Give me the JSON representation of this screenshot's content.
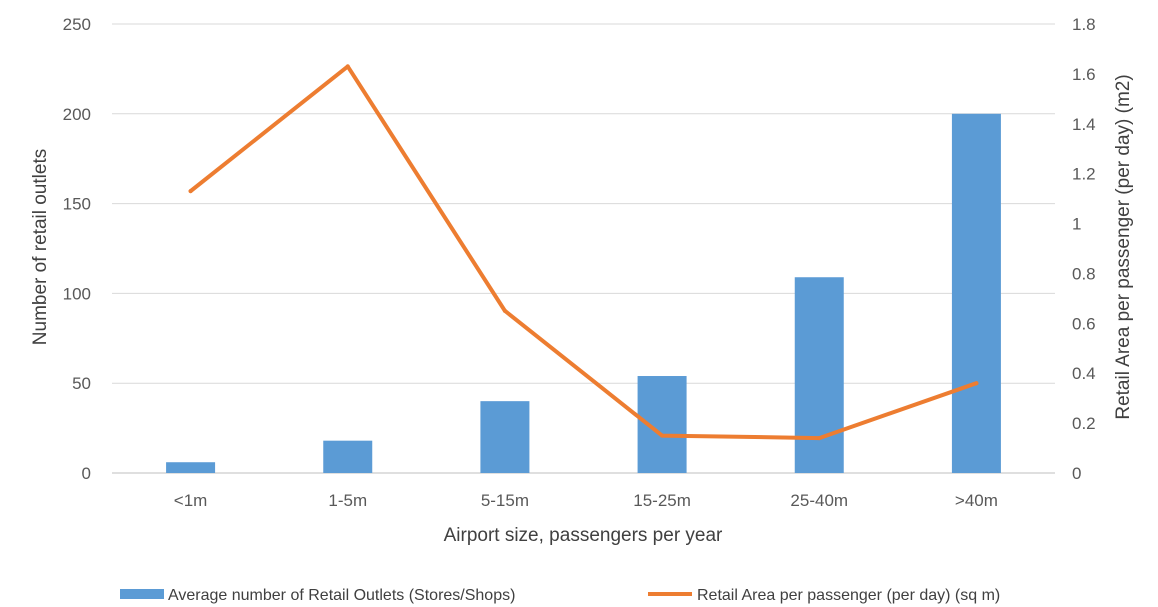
{
  "chart_data": {
    "type": "bar",
    "categories": [
      "<1m",
      "1-5m",
      "5-15m",
      "15-25m",
      "25-40m",
      ">40m"
    ],
    "series": [
      {
        "name": "Average number of Retail Outlets (Stores/Shops)",
        "type": "bar",
        "axis": "left",
        "color": "#5B9BD5",
        "values": [
          6,
          18,
          40,
          54,
          109,
          200
        ]
      },
      {
        "name": "Retail Area per passenger (per day) (sq m)",
        "type": "line",
        "axis": "right",
        "color": "#ED7D31",
        "values": [
          1.13,
          1.63,
          0.65,
          0.15,
          0.14,
          0.36
        ]
      }
    ],
    "xlabel": "Airport size, passengers per year",
    "ylabel": "Number of retail outlets",
    "y2label": "Retail Area per passenger (per day) (m2)",
    "ylim": [
      0,
      250
    ],
    "y2lim": [
      0,
      1.8
    ],
    "yticks": [
      "0",
      "50",
      "100",
      "150",
      "200",
      "250"
    ],
    "y2ticks": [
      "0",
      "0.2",
      "0.4",
      "0.6",
      "0.8",
      "1",
      "1.2",
      "1.4",
      "1.6",
      "1.8"
    ],
    "grid": true,
    "legend_position": "bottom"
  }
}
